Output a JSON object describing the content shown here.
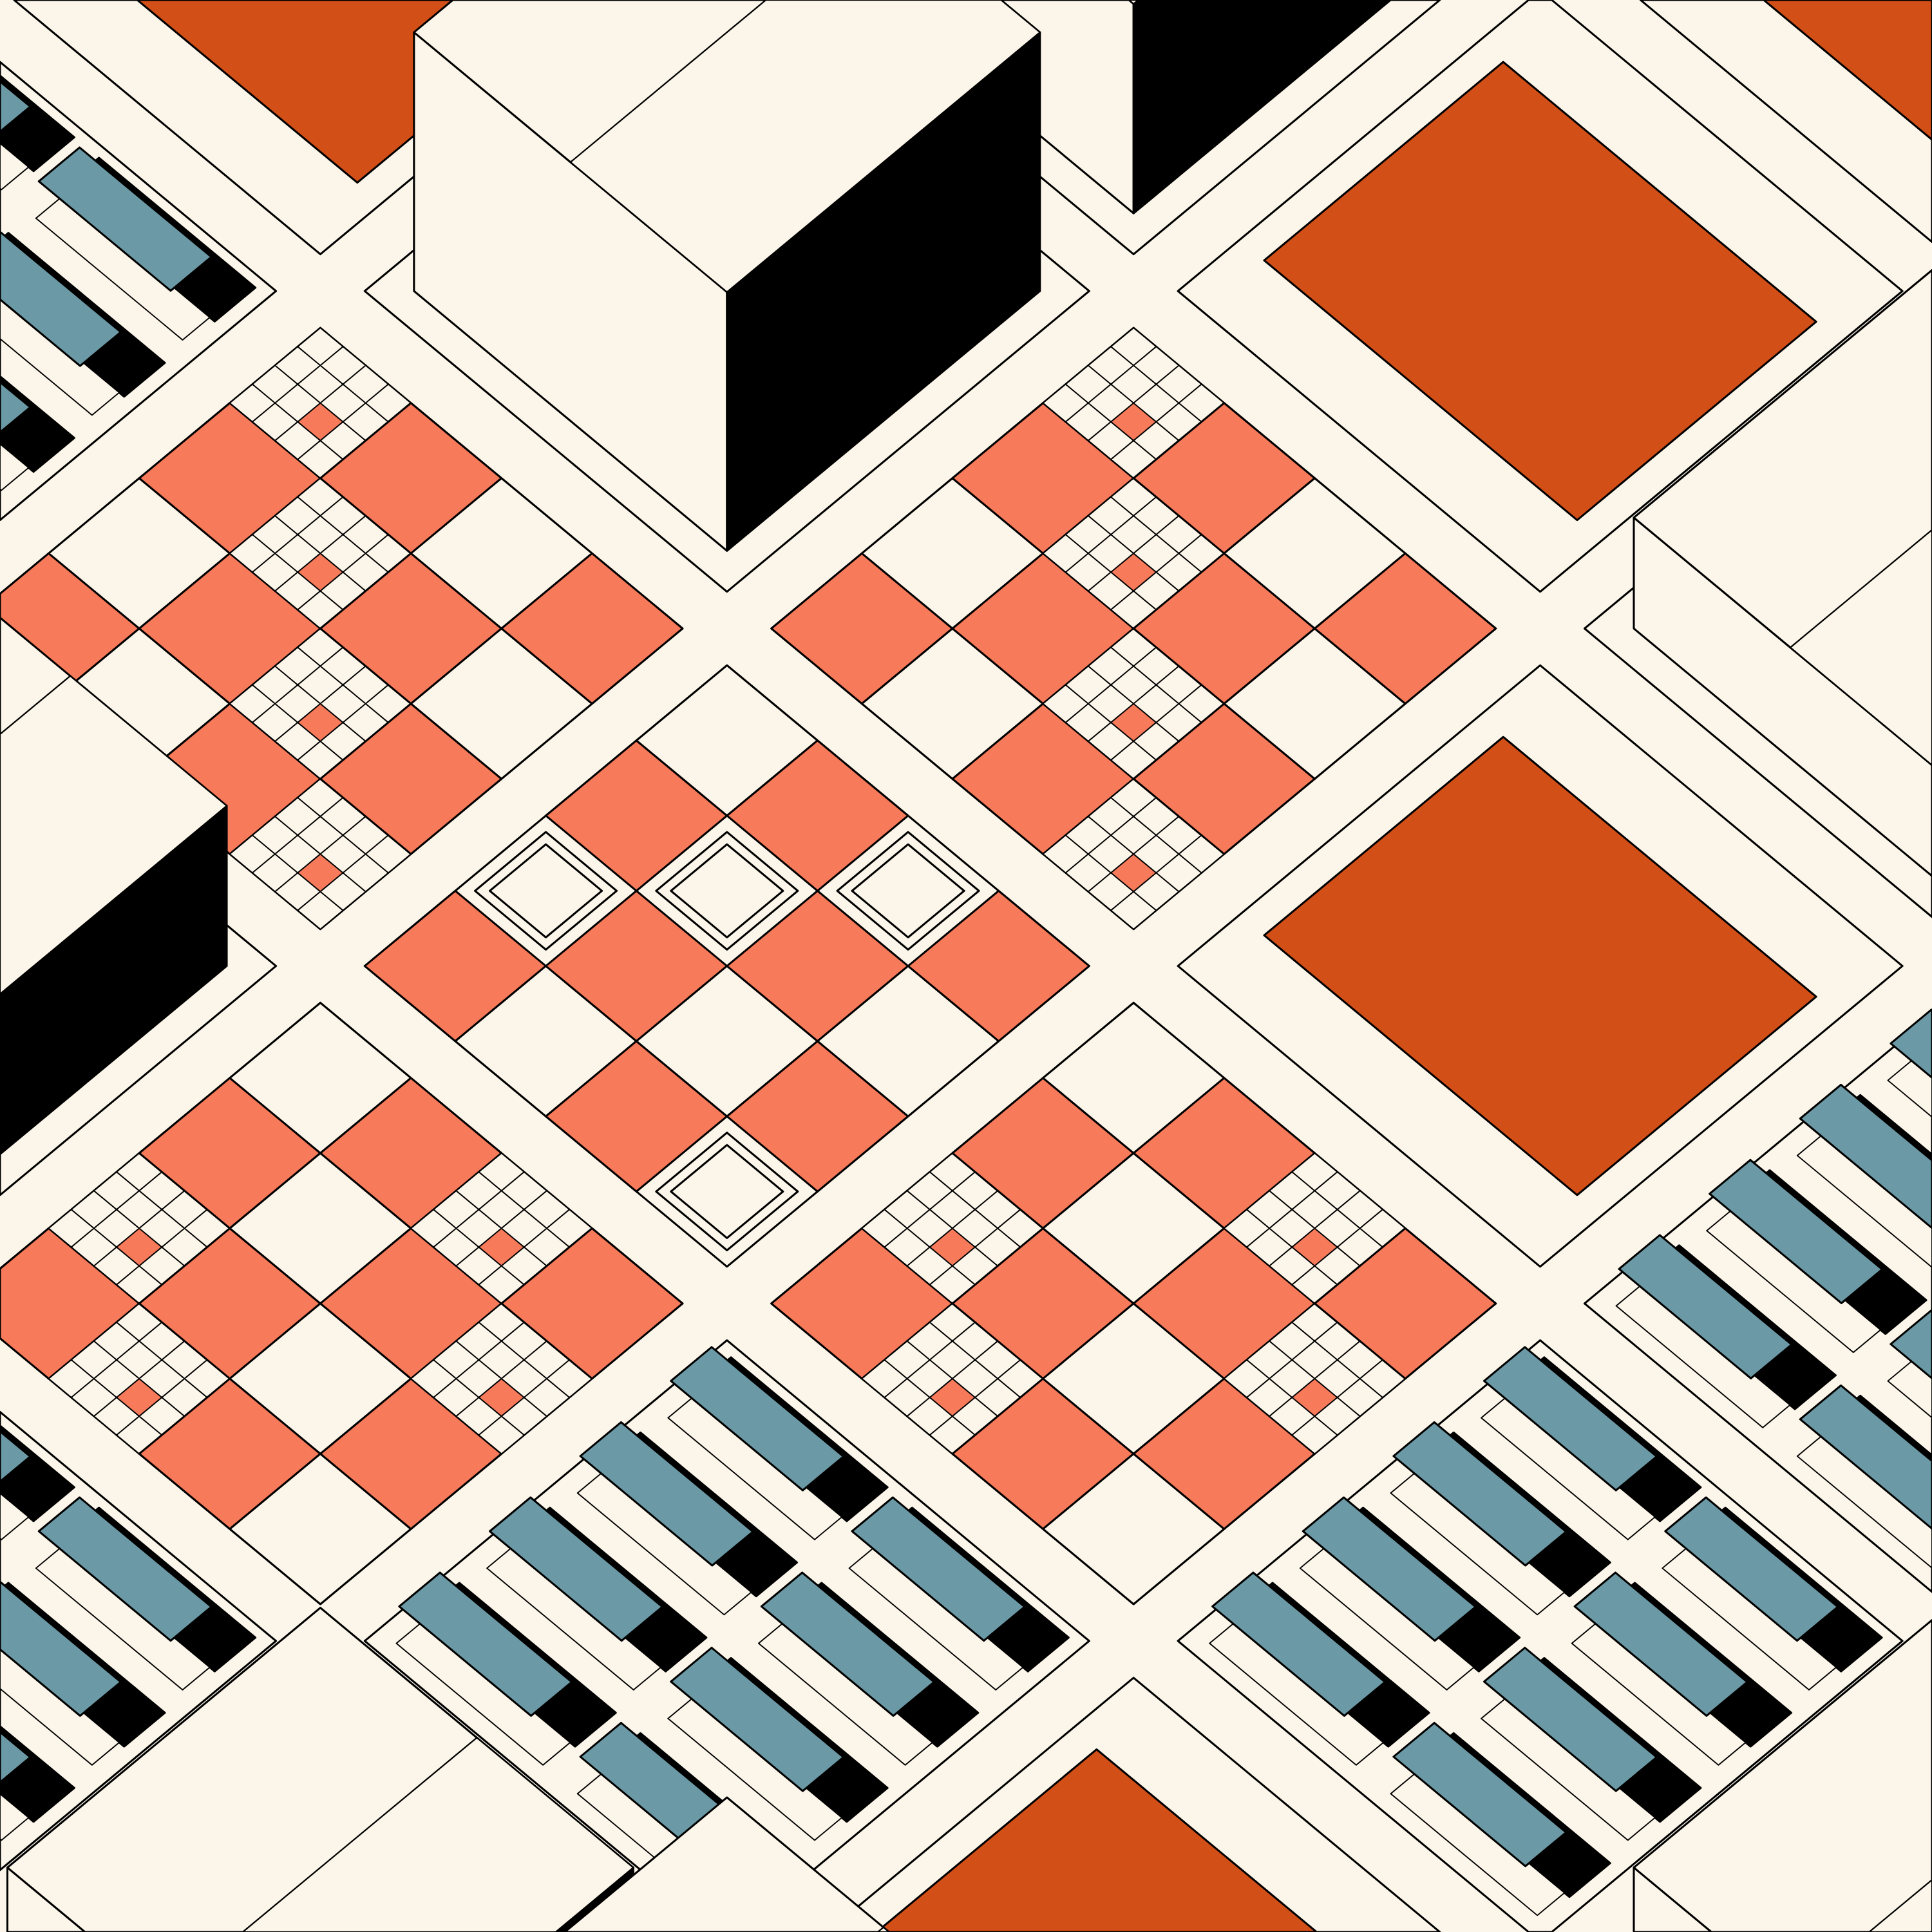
{
  "artwork": {
    "style": "isometric generative city illustration",
    "colors": {
      "background": "#fcf6ea",
      "cream": "#fcf6ea",
      "salmon": "#f77a5a",
      "orange_roof": "#d24f18",
      "solar_blue": "#6b9aa6",
      "shadow_black": "#000000",
      "outline": "#000000"
    },
    "block_types": [
      "plaza",
      "solar-rows",
      "building",
      "roof"
    ]
  }
}
